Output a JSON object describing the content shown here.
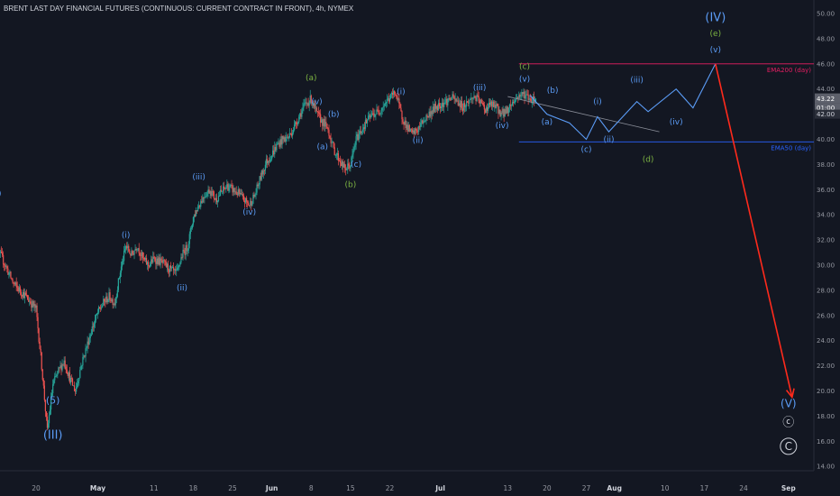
{
  "title": "BRENT LAST DAY FINANCIAL FUTURES (CONTINUOUS: CURRENT CONTRACT IN FRONT), 4h, NYMEX",
  "colors": {
    "background": "#131722",
    "up": "#26a69a",
    "down": "#ef5350",
    "blue_label": "#5b9cf6",
    "green_label": "#7cb342",
    "white_label": "#d1d4dc",
    "ema200": "#e91e63",
    "ema50": "#2962ff",
    "projection": "#5b9cf6",
    "target_arrow": "#ff2a1c"
  },
  "chart_data": {
    "type": "candlestick",
    "symbol": "BRENT LAST DAY FINANCIAL FUTURES (CONTINUOUS: CURRENT CONTRACT IN FRONT)",
    "timeframe": "4h",
    "exchange": "NYMEX",
    "grid": false,
    "y_axis": {
      "position": "right",
      "range": [
        13.5,
        51.2
      ],
      "ticks": [
        "14.00",
        "16.00",
        "18.00",
        "20.00",
        "22.00",
        "24.00",
        "26.00",
        "28.00",
        "30.00",
        "32.00",
        "34.00",
        "36.00",
        "38.00",
        "40.00",
        "42.00",
        "44.00",
        "46.00",
        "48.00",
        "50.00"
      ]
    },
    "x_axis": {
      "ticks": [
        {
          "label": "20",
          "date": "2020-04-20"
        },
        {
          "label": "May",
          "date": "2020-05-01",
          "bold": true
        },
        {
          "label": "11",
          "date": "2020-05-11"
        },
        {
          "label": "18",
          "date": "2020-05-18"
        },
        {
          "label": "25",
          "date": "2020-05-25"
        },
        {
          "label": "Jun",
          "date": "2020-06-01",
          "bold": true
        },
        {
          "label": "8",
          "date": "2020-06-08"
        },
        {
          "label": "15",
          "date": "2020-06-15"
        },
        {
          "label": "22",
          "date": "2020-06-22"
        },
        {
          "label": "Jul",
          "date": "2020-07-01",
          "bold": true
        },
        {
          "label": "13",
          "date": "2020-07-13"
        },
        {
          "label": "20",
          "date": "2020-07-20"
        },
        {
          "label": "27",
          "date": "2020-07-27"
        },
        {
          "label": "Aug",
          "date": "2020-08-01",
          "bold": true
        },
        {
          "label": "10",
          "date": "2020-08-10"
        },
        {
          "label": "17",
          "date": "2020-08-17"
        },
        {
          "label": "24",
          "date": "2020-08-24"
        },
        {
          "label": "Sep",
          "date": "2020-09-01",
          "bold": true
        }
      ]
    },
    "price_path": [
      [
        "2020-04-12",
        32.2
      ],
      [
        "2020-04-14",
        30.5
      ],
      [
        "2020-04-16",
        28.5
      ],
      [
        "2020-04-18",
        27.6
      ],
      [
        "2020-04-20",
        26.5
      ],
      [
        "2020-04-21",
        22.0
      ],
      [
        "2020-04-22",
        16.8
      ],
      [
        "2020-04-23",
        20.5
      ],
      [
        "2020-04-24",
        21.6
      ],
      [
        "2020-04-25",
        22.4
      ],
      [
        "2020-04-26",
        21.0
      ],
      [
        "2020-04-27",
        20.0
      ],
      [
        "2020-04-28",
        22.0
      ],
      [
        "2020-04-29",
        23.5
      ],
      [
        "2020-04-30",
        25.0
      ],
      [
        "2020-05-01",
        26.2
      ],
      [
        "2020-05-02",
        27.0
      ],
      [
        "2020-05-03",
        27.5
      ],
      [
        "2020-05-04",
        27.0
      ],
      [
        "2020-05-05",
        29.5
      ],
      [
        "2020-05-06",
        31.5
      ],
      [
        "2020-05-07",
        30.8
      ],
      [
        "2020-05-08",
        31.6
      ],
      [
        "2020-05-09",
        30.5
      ],
      [
        "2020-05-10",
        30.0
      ],
      [
        "2020-05-11",
        30.5
      ],
      [
        "2020-05-12",
        30.3
      ],
      [
        "2020-05-13",
        30.0
      ],
      [
        "2020-05-14",
        29.6
      ],
      [
        "2020-05-15",
        29.3
      ],
      [
        "2020-05-16",
        30.8
      ],
      [
        "2020-05-17",
        31.5
      ],
      [
        "2020-05-18",
        33.8
      ],
      [
        "2020-05-19",
        34.8
      ],
      [
        "2020-05-20",
        35.6
      ],
      [
        "2020-05-21",
        36.0
      ],
      [
        "2020-05-22",
        35.2
      ],
      [
        "2020-05-23",
        35.8
      ],
      [
        "2020-05-24",
        36.3
      ],
      [
        "2020-05-25",
        36.0
      ],
      [
        "2020-05-26",
        35.7
      ],
      [
        "2020-05-27",
        35.2
      ],
      [
        "2020-05-28",
        34.8
      ],
      [
        "2020-05-29",
        35.6
      ],
      [
        "2020-05-30",
        37.0
      ],
      [
        "2020-05-31",
        38.2
      ],
      [
        "2020-06-01",
        38.8
      ],
      [
        "2020-06-02",
        39.6
      ],
      [
        "2020-06-03",
        40.0
      ],
      [
        "2020-06-04",
        40.2
      ],
      [
        "2020-06-05",
        41.0
      ],
      [
        "2020-06-06",
        42.0
      ],
      [
        "2020-06-07",
        42.8
      ],
      [
        "2020-06-08",
        43.2
      ],
      [
        "2020-06-09",
        42.0
      ],
      [
        "2020-06-10",
        41.4
      ],
      [
        "2020-06-11",
        40.8
      ],
      [
        "2020-06-12",
        39.2
      ],
      [
        "2020-06-13",
        38.4
      ],
      [
        "2020-06-14",
        37.6
      ],
      [
        "2020-06-15",
        38.0
      ],
      [
        "2020-06-16",
        40.0
      ],
      [
        "2020-06-17",
        40.8
      ],
      [
        "2020-06-18",
        41.5
      ],
      [
        "2020-06-19",
        42.0
      ],
      [
        "2020-06-20",
        42.2
      ],
      [
        "2020-06-21",
        42.8
      ],
      [
        "2020-06-22",
        43.3
      ],
      [
        "2020-06-23",
        43.8
      ],
      [
        "2020-06-24",
        42.0
      ],
      [
        "2020-06-25",
        41.0
      ],
      [
        "2020-06-26",
        40.4
      ],
      [
        "2020-06-27",
        40.8
      ],
      [
        "2020-06-28",
        41.5
      ],
      [
        "2020-06-29",
        42.0
      ],
      [
        "2020-06-30",
        42.5
      ],
      [
        "2020-07-01",
        42.8
      ],
      [
        "2020-07-02",
        43.0
      ],
      [
        "2020-07-03",
        43.3
      ],
      [
        "2020-07-04",
        43.0
      ],
      [
        "2020-07-05",
        42.6
      ],
      [
        "2020-07-06",
        43.0
      ],
      [
        "2020-07-07",
        43.4
      ],
      [
        "2020-07-08",
        43.0
      ],
      [
        "2020-07-09",
        42.4
      ],
      [
        "2020-07-10",
        42.8
      ],
      [
        "2020-07-11",
        42.5
      ],
      [
        "2020-07-12",
        42.0
      ],
      [
        "2020-07-13",
        42.4
      ],
      [
        "2020-07-14",
        43.0
      ],
      [
        "2020-07-15",
        43.5
      ],
      [
        "2020-07-16",
        43.6
      ],
      [
        "2020-07-17",
        43.2
      ],
      [
        "2020-07-18",
        43.2
      ]
    ],
    "last_price": "43.22",
    "countdown": "01:00",
    "axis_label_42": "42.00",
    "lines": [
      {
        "name": "EMA200 (day)",
        "value": 46.0,
        "from": "2020-07-15",
        "color": "#e91e63"
      },
      {
        "name": "EMA50 (day)",
        "value": 39.8,
        "from": "2020-07-15",
        "color": "#2962ff"
      }
    ],
    "projection_path": [
      [
        "2020-07-17",
        43.5
      ],
      [
        "2020-07-20",
        42.0
      ],
      [
        "2020-07-24",
        41.3
      ],
      [
        "2020-07-27",
        40.0
      ],
      [
        "2020-07-29",
        41.8
      ],
      [
        "2020-07-31",
        40.6
      ],
      [
        "2020-08-05",
        43.0
      ],
      [
        "2020-08-07",
        42.2
      ],
      [
        "2020-08-12",
        44.0
      ],
      [
        "2020-08-15",
        42.5
      ],
      [
        "2020-08-19",
        46.0
      ]
    ],
    "trend_line": [
      [
        "2020-07-13",
        43.4
      ],
      [
        "2020-08-09",
        40.6
      ]
    ],
    "target_arrow": {
      "from": [
        "2020-08-19",
        46.0
      ],
      "to": [
        "2020-09-01",
        19.5
      ]
    },
    "wave_labels": [
      {
        "text": "(III)",
        "date": "2020-04-23",
        "price": 16.2,
        "color": "blue_label",
        "size": 13
      },
      {
        "text": "(5)",
        "date": "2020-04-23",
        "price": 19.0,
        "color": "blue_label",
        "size": 11
      },
      {
        "text": "(i)",
        "date": "2020-05-06",
        "price": 32.2,
        "color": "blue_label"
      },
      {
        "text": "(ii)",
        "date": "2020-05-16",
        "price": 28.0,
        "color": "blue_label"
      },
      {
        "text": "(iii)",
        "date": "2020-05-19",
        "price": 36.8,
        "color": "blue_label"
      },
      {
        "text": "(iv)",
        "date": "2020-05-28",
        "price": 34.0,
        "color": "blue_label"
      },
      {
        "text": "(a)",
        "date": "2020-06-08",
        "price": 44.7,
        "color": "green_label"
      },
      {
        "text": "(v)",
        "date": "2020-06-09",
        "price": 42.8,
        "color": "blue_label"
      },
      {
        "text": "(b)",
        "date": "2020-06-12",
        "price": 41.8,
        "color": "blue_label"
      },
      {
        "text": "(a)",
        "date": "2020-06-10",
        "price": 39.2,
        "color": "blue_label"
      },
      {
        "text": "(c)",
        "date": "2020-06-16",
        "price": 37.8,
        "color": "blue_label"
      },
      {
        "text": "(b)",
        "date": "2020-06-15",
        "price": 36.2,
        "color": "green_label"
      },
      {
        "text": "(i)",
        "date": "2020-06-24",
        "price": 43.6,
        "color": "blue_label"
      },
      {
        "text": "(ii)",
        "date": "2020-06-27",
        "price": 39.7,
        "color": "blue_label"
      },
      {
        "text": "(iii)",
        "date": "2020-07-08",
        "price": 43.9,
        "color": "blue_label"
      },
      {
        "text": "(iv)",
        "date": "2020-07-12",
        "price": 40.9,
        "color": "blue_label"
      },
      {
        "text": "(c)",
        "date": "2020-07-16",
        "price": 45.6,
        "color": "green_label"
      },
      {
        "text": "(v)",
        "date": "2020-07-16",
        "price": 44.6,
        "color": "blue_label"
      },
      {
        "text": "(b)",
        "date": "2020-07-21",
        "price": 43.7,
        "color": "blue_label"
      },
      {
        "text": "(a)",
        "date": "2020-07-20",
        "price": 41.2,
        "color": "blue_label"
      },
      {
        "text": "(c)",
        "date": "2020-07-27",
        "price": 39.0,
        "color": "blue_label"
      },
      {
        "text": "(i)",
        "date": "2020-07-29",
        "price": 42.8,
        "color": "blue_label"
      },
      {
        "text": "(ii)",
        "date": "2020-07-31",
        "price": 39.8,
        "color": "blue_label"
      },
      {
        "text": "(iii)",
        "date": "2020-08-05",
        "price": 44.5,
        "color": "blue_label"
      },
      {
        "text": "(iv)",
        "date": "2020-08-12",
        "price": 41.2,
        "color": "blue_label"
      },
      {
        "text": "(v)",
        "date": "2020-08-19",
        "price": 46.9,
        "color": "blue_label"
      },
      {
        "text": "(e)",
        "date": "2020-08-19",
        "price": 48.2,
        "color": "green_label"
      },
      {
        "text": "(IV)",
        "date": "2020-08-19",
        "price": 49.4,
        "color": "blue_label",
        "size": 13
      },
      {
        "text": "(d)",
        "date": "2020-08-07",
        "price": 38.2,
        "color": "green_label"
      },
      {
        "text": "(V)",
        "date": "2020-09-01",
        "price": 18.7,
        "color": "blue_label",
        "size": 12
      },
      {
        "text": "ⓒ",
        "date": "2020-09-01",
        "price": 17.2,
        "color": "white_label",
        "size": 13
      },
      {
        "text": "C",
        "date": "2020-09-01",
        "price": 15.3,
        "color": "white_label",
        "size": 12,
        "circle": true
      }
    ],
    "edge_label": {
      "text": ")",
      "price": 35.5,
      "color": "blue_label"
    }
  }
}
